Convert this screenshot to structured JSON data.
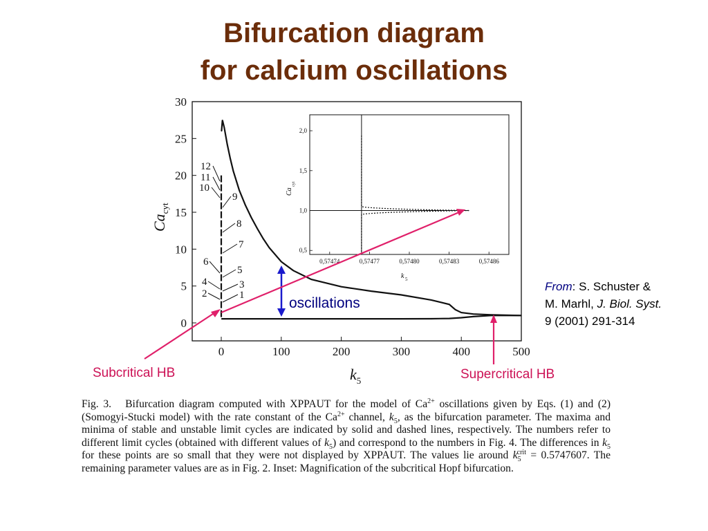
{
  "title": {
    "line1": "Bifurcation diagram",
    "line2": "for calcium oscillations"
  },
  "reference": {
    "from": "From",
    "line1_rest": ": S. Schuster &",
    "line2_prefix": "M. Marhl, ",
    "journal": "J. Biol. Syst.",
    "line3": "9 (2001) 291-314"
  },
  "annotations": {
    "oscillations": "oscillations",
    "subcritical": "Subcritical HB",
    "supercritical": "Supercritical HB"
  },
  "colors": {
    "title": "#6b2d0a",
    "pink_arrow": "#e0206a",
    "blue_arrow": "#1a1acc",
    "text_pink": "#cc1155",
    "text_blue": "#00007f"
  },
  "chart_data": [
    {
      "type": "line",
      "xlabel": "k",
      "xlabel_sub": "5",
      "ylabel": "Ca",
      "ylabel_sub": "cyt",
      "xlim": [
        -50,
        500
      ],
      "ylim": [
        -2,
        30
      ],
      "x_ticks": [
        0,
        100,
        200,
        300,
        400,
        500
      ],
      "y_ticks": [
        0,
        5,
        10,
        15,
        20,
        25,
        30
      ],
      "series": [
        {
          "role": "maxima",
          "x": [
            0.5,
            2,
            5,
            10,
            15,
            20,
            30,
            40,
            50,
            60,
            70,
            80,
            100,
            120,
            150,
            200,
            250,
            300,
            350,
            380,
            390,
            400,
            420,
            450,
            500
          ],
          "y": [
            26,
            27.5,
            26.5,
            24.2,
            22.3,
            20.6,
            18.0,
            16.0,
            14.3,
            12.8,
            11.4,
            10.2,
            8.3,
            7.1,
            5.9,
            4.9,
            4.3,
            3.8,
            3.1,
            2.5,
            1.8,
            1.4,
            1.2,
            1.1,
            1.0
          ]
        },
        {
          "role": "minima",
          "x": [
            0.5,
            100,
            200,
            300,
            350,
            380,
            400,
            420,
            450,
            500
          ],
          "y": [
            0.55,
            0.55,
            0.55,
            0.55,
            0.56,
            0.6,
            0.7,
            0.85,
            1.0,
            1.0
          ]
        }
      ],
      "labels": [
        "1",
        "2",
        "3",
        "4",
        "5",
        "6",
        "7",
        "8",
        "9",
        "10",
        "11",
        "12"
      ]
    },
    {
      "type": "line",
      "inset": true,
      "xlabel": "k",
      "xlabel_sub": "5",
      "ylabel": "Ca",
      "ylabel_sub": "cyt",
      "x_ticks": [
        "0,57474",
        "0,57477",
        "0,57480",
        "0,57483",
        "0,57486"
      ],
      "y_ticks": [
        "0,5",
        "1,0",
        "1,5",
        "2,0"
      ],
      "xlim": [
        0.574725,
        0.574875
      ],
      "ylim": [
        0.45,
        2.2
      ]
    }
  ],
  "caption": {
    "lead": "Fig. 3.",
    "s1": "Bifurcation diagram computed with XPPAUT for the model of Ca",
    "sup1": "2+",
    "s2": " oscillations given by Eqs. (1) and (2) (Somogyi-Stucki model) with the rate constant of the Ca",
    "sup2": "2+",
    "s3": " channel, ",
    "k": "k",
    "sub5": "5",
    "s4": ", as the bifurcation parameter. The maxima and minima of stable and unstable limit cycles are indicated by solid and dashed lines, respectively. The numbers refer to different limit cycles (obtained with different values of ",
    "s5": ") and correspond to the numbers in Fig. 4. The differences in ",
    "s6": " for these points are so small that they were not displayed by XPPAUT. The values lie around ",
    "sup_crit": "crit",
    "s7": " = 0.5747607. The remaining parameter values are as in Fig. 2. Inset: Magnification of the subcritical Hopf bifurcation."
  }
}
